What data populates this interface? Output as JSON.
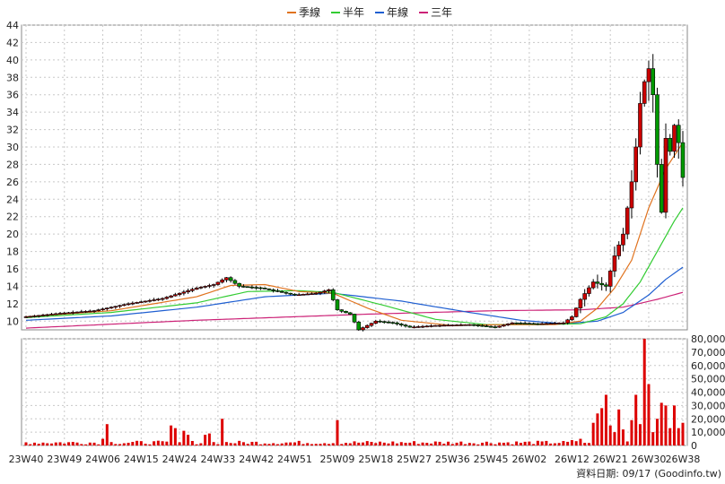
{
  "chart_data": {
    "type": "candlestick-with-volume",
    "legend": [
      {
        "name": "季線",
        "color": "#e0731f"
      },
      {
        "name": "半年",
        "color": "#33cc33"
      },
      {
        "name": "年線",
        "color": "#1f5fd1"
      },
      {
        "name": "三年",
        "color": "#cc2277"
      }
    ],
    "price_axis": {
      "min": 9,
      "max": 44,
      "ticks": [
        10,
        12,
        14,
        16,
        18,
        20,
        22,
        24,
        26,
        28,
        30,
        32,
        34,
        36,
        38,
        40,
        42,
        44
      ]
    },
    "volume_axis": {
      "min": 0,
      "max": 80000,
      "ticks": [
        "0",
        "10,000",
        "20,000",
        "30,000",
        "40,000",
        "50,000",
        "60,000",
        "70,000",
        "80,000"
      ],
      "tick_values": [
        0,
        10000,
        20000,
        30000,
        40000,
        50000,
        60000,
        70000,
        80000
      ]
    },
    "x_labels": [
      {
        "label": "23W40",
        "week": 0
      },
      {
        "label": "23W49",
        "week": 9
      },
      {
        "label": "24W06",
        "week": 18
      },
      {
        "label": "24W15",
        "week": 27
      },
      {
        "label": "24W24",
        "week": 36
      },
      {
        "label": "24W33",
        "week": 45
      },
      {
        "label": "24W42",
        "week": 54
      },
      {
        "label": "24W51",
        "week": 63
      },
      {
        "label": "25W09",
        "week": 73
      },
      {
        "label": "25W18",
        "week": 82
      },
      {
        "label": "25W27",
        "week": 91
      },
      {
        "label": "25W36",
        "week": 100
      },
      {
        "label": "25W45",
        "week": 109
      },
      {
        "label": "26W02",
        "week": 118
      },
      {
        "label": "26W12",
        "week": 128
      },
      {
        "label": "26W21",
        "week": 137
      },
      {
        "label": "26W30",
        "week": 146
      },
      {
        "label": "26W38",
        "week": 154
      }
    ],
    "total_weeks": 155,
    "price_path": [
      [
        0,
        10.5
      ],
      [
        8,
        10.9
      ],
      [
        16,
        11.2
      ],
      [
        24,
        12.0
      ],
      [
        32,
        12.6
      ],
      [
        40,
        13.8
      ],
      [
        44,
        14.2
      ],
      [
        47,
        15.0
      ],
      [
        50,
        14.0
      ],
      [
        55,
        13.8
      ],
      [
        63,
        13.0
      ],
      [
        68,
        13.2
      ],
      [
        71,
        13.6
      ],
      [
        73,
        11.3
      ],
      [
        76,
        10.8
      ],
      [
        78,
        9.0
      ],
      [
        82,
        10.0
      ],
      [
        86,
        9.8
      ],
      [
        90,
        9.3
      ],
      [
        96,
        9.5
      ],
      [
        104,
        9.6
      ],
      [
        110,
        9.3
      ],
      [
        114,
        9.8
      ],
      [
        120,
        9.7
      ],
      [
        126,
        9.8
      ],
      [
        128,
        10.5
      ],
      [
        130,
        12.5
      ],
      [
        133,
        14.5
      ],
      [
        136,
        14.0
      ],
      [
        138,
        17.5
      ],
      [
        140,
        20.0
      ],
      [
        142,
        26.0
      ],
      [
        143,
        30.0
      ],
      [
        144,
        35.0
      ],
      [
        145,
        37.5
      ],
      [
        146,
        39.0
      ],
      [
        147,
        36.0
      ],
      [
        148,
        28.0
      ],
      [
        149,
        22.5
      ],
      [
        150,
        31.0
      ],
      [
        151,
        29.5
      ],
      [
        152,
        32.5
      ],
      [
        153,
        30.5
      ],
      [
        154,
        26.5
      ]
    ],
    "ma_quarter": [
      [
        0,
        10.5
      ],
      [
        20,
        11.2
      ],
      [
        40,
        12.8
      ],
      [
        48,
        14.1
      ],
      [
        56,
        14.2
      ],
      [
        64,
        13.4
      ],
      [
        72,
        13.2
      ],
      [
        80,
        11.5
      ],
      [
        88,
        10.1
      ],
      [
        100,
        9.5
      ],
      [
        112,
        9.6
      ],
      [
        124,
        9.6
      ],
      [
        130,
        10.0
      ],
      [
        134,
        11.5
      ],
      [
        138,
        13.8
      ],
      [
        142,
        17.0
      ],
      [
        146,
        23.0
      ],
      [
        150,
        27.5
      ],
      [
        154,
        30.5
      ]
    ],
    "ma_half": [
      [
        0,
        10.4
      ],
      [
        20,
        11.0
      ],
      [
        40,
        12.1
      ],
      [
        52,
        13.4
      ],
      [
        64,
        13.5
      ],
      [
        72,
        13.3
      ],
      [
        84,
        11.8
      ],
      [
        96,
        10.2
      ],
      [
        108,
        9.6
      ],
      [
        120,
        9.6
      ],
      [
        130,
        9.7
      ],
      [
        136,
        10.5
      ],
      [
        140,
        12.0
      ],
      [
        144,
        14.5
      ],
      [
        148,
        18.0
      ],
      [
        152,
        21.5
      ],
      [
        154,
        23.0
      ]
    ],
    "ma_year": [
      [
        0,
        10.1
      ],
      [
        20,
        10.6
      ],
      [
        40,
        11.6
      ],
      [
        56,
        12.8
      ],
      [
        72,
        13.2
      ],
      [
        88,
        12.3
      ],
      [
        104,
        11.0
      ],
      [
        116,
        10.1
      ],
      [
        126,
        9.7
      ],
      [
        134,
        10.0
      ],
      [
        140,
        11.0
      ],
      [
        146,
        13.0
      ],
      [
        150,
        14.8
      ],
      [
        154,
        16.2
      ]
    ],
    "ma_three": [
      [
        0,
        9.2
      ],
      [
        40,
        10.1
      ],
      [
        80,
        10.8
      ],
      [
        110,
        11.2
      ],
      [
        130,
        11.3
      ],
      [
        140,
        11.6
      ],
      [
        148,
        12.5
      ],
      [
        154,
        13.3
      ]
    ],
    "volume_spikes": [
      [
        18,
        5000
      ],
      [
        19,
        16000
      ],
      [
        34,
        15000
      ],
      [
        35,
        13000
      ],
      [
        37,
        11000
      ],
      [
        38,
        8000
      ],
      [
        42,
        8000
      ],
      [
        43,
        9000
      ],
      [
        46,
        20000
      ],
      [
        73,
        19000
      ],
      [
        128,
        4000
      ],
      [
        130,
        5000
      ],
      [
        133,
        17000
      ],
      [
        134,
        24000
      ],
      [
        135,
        28000
      ],
      [
        136,
        38000
      ],
      [
        137,
        15000
      ],
      [
        138,
        10000
      ],
      [
        139,
        27000
      ],
      [
        140,
        12000
      ],
      [
        142,
        19000
      ],
      [
        143,
        38000
      ],
      [
        144,
        16000
      ],
      [
        145,
        80000
      ],
      [
        146,
        46000
      ],
      [
        147,
        10000
      ],
      [
        148,
        20000
      ],
      [
        149,
        32000
      ],
      [
        150,
        30000
      ],
      [
        151,
        13000
      ],
      [
        152,
        30000
      ],
      [
        153,
        13000
      ],
      [
        154,
        17000
      ]
    ]
  },
  "footer": {
    "prefix": "資料日期: ",
    "date": "09/17",
    "source": "(Goodinfo.tw)"
  }
}
